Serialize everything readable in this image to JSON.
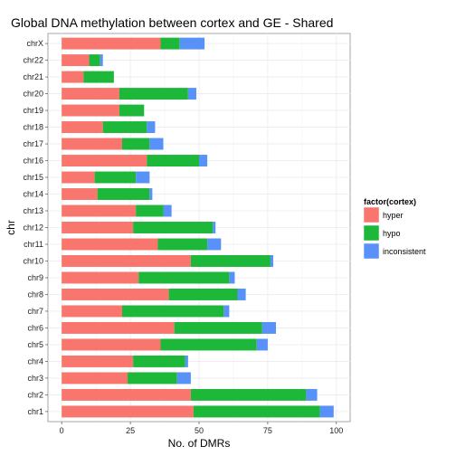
{
  "chart_data": {
    "type": "bar",
    "orientation": "horizontal",
    "stacked": true,
    "title": "Global DNA methylation between cortex and GE - Shared",
    "xlabel": "No. of DMRs",
    "ylabel": "chr",
    "xlim": [
      0,
      100
    ],
    "x_ticks": [
      0,
      25,
      50,
      75,
      100
    ],
    "grid": true,
    "legend": {
      "title": "factor(cortex)",
      "placement": "right"
    },
    "categories": [
      "chr1",
      "chr2",
      "chr3",
      "chr4",
      "chr5",
      "chr6",
      "chr7",
      "chr8",
      "chr9",
      "chr10",
      "chr11",
      "chr12",
      "chr13",
      "chr14",
      "chr15",
      "chr16",
      "chr17",
      "chr18",
      "chr19",
      "chr20",
      "chr21",
      "chr22",
      "chrX"
    ],
    "series": [
      {
        "name": "hyper",
        "color": "#F8766D",
        "values": [
          48,
          47,
          24,
          26,
          36,
          41,
          22,
          39,
          28,
          47,
          35,
          26,
          27,
          13,
          12,
          31,
          22,
          15,
          21,
          21,
          8,
          10,
          36
        ]
      },
      {
        "name": "hypo",
        "color": "#1DB83A",
        "values": [
          46,
          42,
          18,
          19,
          35,
          32,
          37,
          25,
          33,
          29,
          18,
          29,
          10,
          19,
          15,
          19,
          10,
          16,
          9,
          25,
          11,
          4,
          7
        ]
      },
      {
        "name": "inconsistent",
        "color": "#5892F8",
        "values": [
          5,
          4,
          5,
          1,
          4,
          5,
          2,
          3,
          2,
          1,
          5,
          1,
          3,
          1,
          5,
          3,
          5,
          3,
          0,
          3,
          0,
          1,
          9
        ]
      }
    ]
  }
}
